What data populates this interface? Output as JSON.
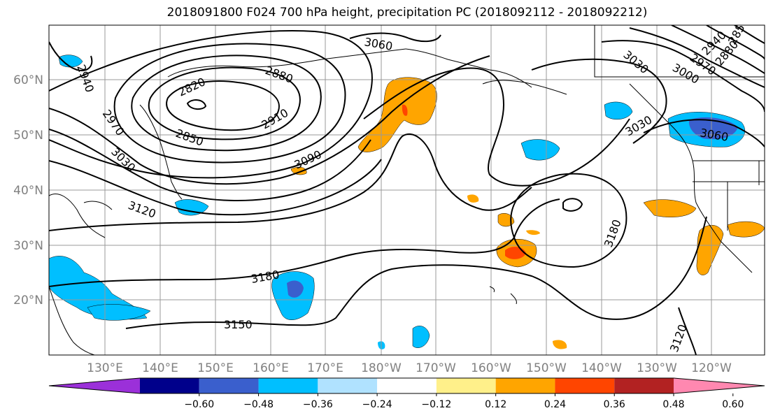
{
  "title": "2018091800 F024 700 hPa height, precipitation PC (2018092112 - 2018092212)",
  "lat_labels": [
    "60°N",
    "50°N",
    "40°N",
    "30°N",
    "20°N"
  ],
  "lon_labels": [
    "130°E",
    "140°E",
    "150°E",
    "160°E",
    "170°E",
    "180°W",
    "170°W",
    "160°W",
    "150°W",
    "140°W",
    "130°W",
    "120°W"
  ],
  "contour_labels": [
    "2940",
    "2820",
    "2880",
    "2850",
    "2910",
    "2970",
    "3030",
    "3090",
    "3120",
    "3060",
    "3180",
    "3150",
    "3180",
    "3120",
    "3030",
    "3000",
    "2970",
    "2940",
    "2880",
    "2850",
    "3030",
    "3060"
  ],
  "colorbar": {
    "colors": [
      "#9b30d9",
      "#00008b",
      "#3a5fcd",
      "#00bfff",
      "#b0e2ff",
      "#ffffff",
      "#fff08a",
      "#ffa500",
      "#ff4500",
      "#b22222",
      "#ff88b0"
    ],
    "tick_labels": [
      "−0.60",
      "−0.48",
      "−0.36",
      "−0.24",
      "−0.12",
      "0.12",
      "0.24",
      "0.36",
      "0.48",
      "0.60"
    ]
  }
}
